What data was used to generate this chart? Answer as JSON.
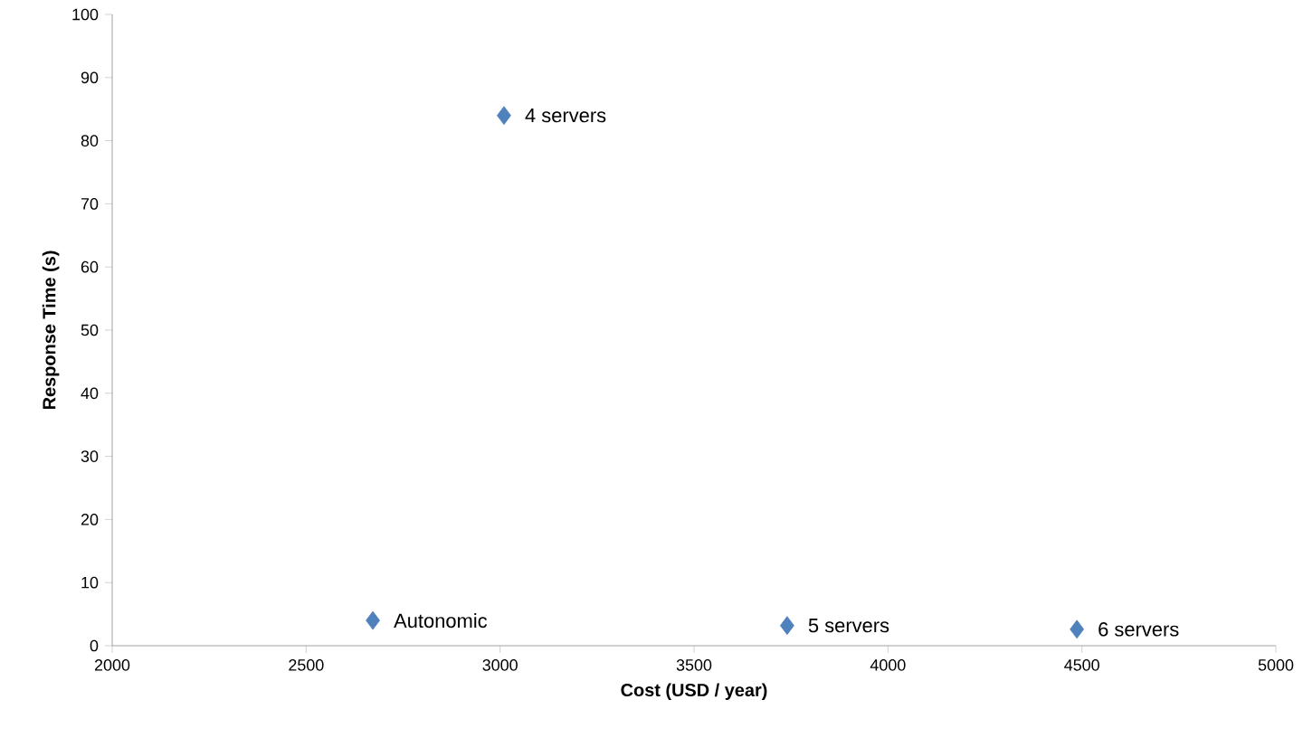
{
  "chart_data": {
    "type": "scatter",
    "xlabel": "Cost (USD / year)",
    "ylabel": "Response Time (s)",
    "x": [
      3010,
      2672,
      3740,
      4487
    ],
    "series": [
      {
        "color": "#4f81bd",
        "values": [
          84,
          4,
          3.2,
          2.6
        ]
      }
    ],
    "marker": "diamond",
    "grid": false,
    "xlim": [
      2000,
      5000
    ],
    "xticks": [
      2000,
      2500,
      3000,
      3500,
      4000,
      4500,
      5000
    ],
    "ylim": [
      0,
      100
    ],
    "yticks": [
      0,
      10,
      20,
      30,
      40,
      50,
      60,
      70,
      80,
      90,
      100
    ],
    "annotations": [
      {
        "text": "4 servers",
        "x": 3010,
        "y": 84
      },
      {
        "text": "Autonomic",
        "x": 2672,
        "y": 4
      },
      {
        "text": "5 servers",
        "x": 3740,
        "y": 3.2
      },
      {
        "text": "6 servers",
        "x": 4487,
        "y": 2.6
      }
    ]
  }
}
